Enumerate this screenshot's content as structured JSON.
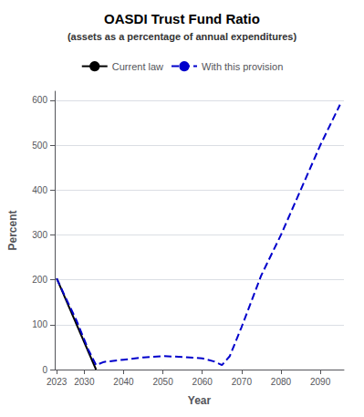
{
  "chart_data": {
    "type": "line",
    "title": "OASDI Trust Fund Ratio",
    "subtitle": "(assets as a percentage of annual expenditures)",
    "xlabel": "Year",
    "ylabel": "Percent",
    "xlim": [
      2022.5,
      2096
    ],
    "ylim": [
      0,
      620
    ],
    "xticks": [
      2023,
      2030,
      2040,
      2050,
      2060,
      2070,
      2080,
      2090
    ],
    "yticks": [
      0,
      100,
      200,
      300,
      400,
      500,
      600
    ],
    "grid": true,
    "legend": "top",
    "series": [
      {
        "name": "Current law",
        "color": "#000000",
        "line_style": "solid",
        "x": [
          2023,
          2033
        ],
        "values": [
          203,
          0
        ]
      },
      {
        "name": "With this provision",
        "color": "#0000cc",
        "line_style": "dashed",
        "x": [
          2023,
          2025,
          2028,
          2031,
          2033,
          2035,
          2040,
          2045,
          2050,
          2055,
          2060,
          2063,
          2065,
          2067,
          2070,
          2075,
          2080,
          2085,
          2090,
          2095
        ],
        "values": [
          203,
          165,
          110,
          45,
          10,
          17,
          22,
          27,
          30,
          28,
          25,
          18,
          10,
          30,
          95,
          210,
          300,
          400,
          500,
          590
        ]
      }
    ]
  }
}
